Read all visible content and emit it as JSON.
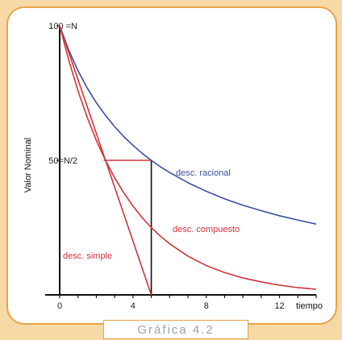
{
  "chart_data": {
    "type": "line",
    "xlabel": "tiempo",
    "ylabel": "Valor Nominal",
    "xlim": [
      0,
      14
    ],
    "ylim": [
      0,
      100
    ],
    "x_ticks": [
      {
        "value": 0,
        "label": "0"
      },
      {
        "value": 4,
        "label": "4"
      },
      {
        "value": 8,
        "label": "8"
      },
      {
        "value": 12,
        "label": "12"
      }
    ],
    "y_ticks": [
      {
        "value": 100,
        "label": "100 =N"
      },
      {
        "value": 50,
        "label": "50=N/2"
      }
    ],
    "series": [
      {
        "name": "desc. racional",
        "color": "#3b4ea0",
        "x": [
          0,
          0.5,
          1,
          1.5,
          2,
          2.5,
          3,
          3.5,
          4,
          4.5,
          5,
          5.5,
          6,
          7,
          8,
          9,
          10,
          11,
          12,
          13,
          14
        ],
        "y": [
          100,
          90.9,
          83.3,
          76.9,
          71.4,
          66.7,
          62.5,
          58.8,
          55.6,
          52.6,
          50,
          47.6,
          45.5,
          41.7,
          38.5,
          35.7,
          33.3,
          31.3,
          29.4,
          27.8,
          26.3
        ]
      },
      {
        "name": "desc. compuesto",
        "color": "#d0343a",
        "x": [
          0,
          0.5,
          1,
          1.5,
          2,
          2.5,
          3,
          3.5,
          4,
          4.5,
          5,
          5.5,
          6,
          7,
          8,
          9,
          10,
          11,
          12,
          13,
          14
        ],
        "y": [
          100,
          87.1,
          75.8,
          66.0,
          57.4,
          50.0,
          43.5,
          37.9,
          33.0,
          28.7,
          25.0,
          21.8,
          19.0,
          14.4,
          10.9,
          8.3,
          6.3,
          4.8,
          3.6,
          2.7,
          2.1
        ]
      },
      {
        "name": "desc. simple",
        "color": "#d0343a",
        "x": [
          0,
          5
        ],
        "y": [
          100,
          0
        ]
      }
    ],
    "annotations": {
      "half_value": 50,
      "half_time": 5
    }
  },
  "caption": "Gráfica 4.2"
}
